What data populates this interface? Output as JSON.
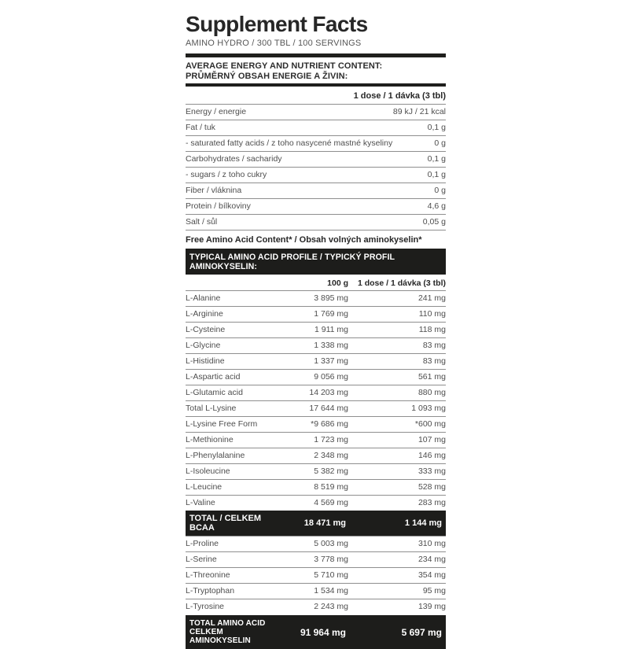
{
  "title": "Supplement Facts",
  "subtitle": "AMINO HYDRO / 300 TBL / 100 SERVINGS",
  "section_header": {
    "line1": "AVERAGE ENERGY AND NUTRIENT CONTENT:",
    "line2": "PRŮMĚRNÝ OBSAH ENERGIE A ŽIVIN:"
  },
  "dose_header": "1 dose / 1 dávka (3 tbl)",
  "nutrients": [
    {
      "label": "Energy / energie",
      "value": "89 kJ / 21 kcal"
    },
    {
      "label": "Fat / tuk",
      "value": "0,1 g"
    },
    {
      "label": "- saturated fatty acids / z toho nasycené mastné kyseliny",
      "value": "0 g"
    },
    {
      "label": "Carbohydrates / sacharidy",
      "value": "0,1 g"
    },
    {
      "label": "- sugars / z toho cukry",
      "value": "0,1 g"
    },
    {
      "label": "Fiber / vláknina",
      "value": "0 g"
    },
    {
      "label": "Protein / bílkoviny",
      "value": "4,6 g"
    },
    {
      "label": "Salt / sůl",
      "value": "0,05 g"
    }
  ],
  "free_amino_note": "Free Amino Acid Content* / Obsah volných aminokyselin*",
  "profile_header": "TYPICAL AMINO ACID PROFILE / TYPICKÝ PROFIL AMINOKYSELIN:",
  "columns": {
    "per100g": "100 g",
    "perDose": "1 dose / 1 dávka (3 tbl)"
  },
  "amino_acids": [
    {
      "name": "L-Alanine",
      "per100g": "3 895 mg",
      "perDose": "241 mg"
    },
    {
      "name": "L-Arginine",
      "per100g": "1 769 mg",
      "perDose": "110 mg"
    },
    {
      "name": "L-Cysteine",
      "per100g": "1 911 mg",
      "perDose": "118 mg"
    },
    {
      "name": "L-Glycine",
      "per100g": "1 338 mg",
      "perDose": "83 mg"
    },
    {
      "name": "L-Histidine",
      "per100g": "1 337 mg",
      "perDose": "83 mg"
    },
    {
      "name": "L-Aspartic acid",
      "per100g": "9 056 mg",
      "perDose": "561 mg"
    },
    {
      "name": "L-Glutamic acid",
      "per100g": "14 203 mg",
      "perDose": "880 mg"
    },
    {
      "name": "Total L-Lysine",
      "per100g": "17 644 mg",
      "perDose": "1 093 mg"
    },
    {
      "name": "L-Lysine Free Form",
      "per100g": "*9 686 mg",
      "perDose": "*600 mg"
    },
    {
      "name": "L-Methionine",
      "per100g": "1 723 mg",
      "perDose": "107 mg"
    },
    {
      "name": "L-Phenylalanine",
      "per100g": "2 348 mg",
      "perDose": "146 mg"
    },
    {
      "name": "L-Isoleucine",
      "per100g": "5 382 mg",
      "perDose": "333 mg"
    },
    {
      "name": "L-Leucine",
      "per100g": "8 519 mg",
      "perDose": "528 mg"
    },
    {
      "name": "L-Valine",
      "per100g": "4 569 mg",
      "perDose": "283 mg"
    }
  ],
  "total_bcaa": {
    "name": "TOTAL / CELKEM BCAA",
    "per100g": "18 471 mg",
    "perDose": "1 144 mg"
  },
  "amino_acids_2": [
    {
      "name": "L-Proline",
      "per100g": "5 003 mg",
      "perDose": "310 mg"
    },
    {
      "name": "L-Serine",
      "per100g": "3 778 mg",
      "perDose": "234 mg"
    },
    {
      "name": "L-Threonine",
      "per100g": "5 710 mg",
      "perDose": "354 mg"
    },
    {
      "name": "L-Tryptophan",
      "per100g": "1 534 mg",
      "perDose": "95 mg"
    },
    {
      "name": "L-Tyrosine",
      "per100g": "2 243 mg",
      "perDose": "139 mg"
    }
  ],
  "total_amino": {
    "name_line1": "TOTAL AMINO ACID",
    "name_line2": "CELKEM AMINOKYSELIN",
    "per100g": "91 964 mg",
    "perDose": "5 697 mg"
  },
  "colors": {
    "bar_background": "#1d1d1b",
    "body_text": "#4e4e4e",
    "heading_text": "#272727"
  }
}
